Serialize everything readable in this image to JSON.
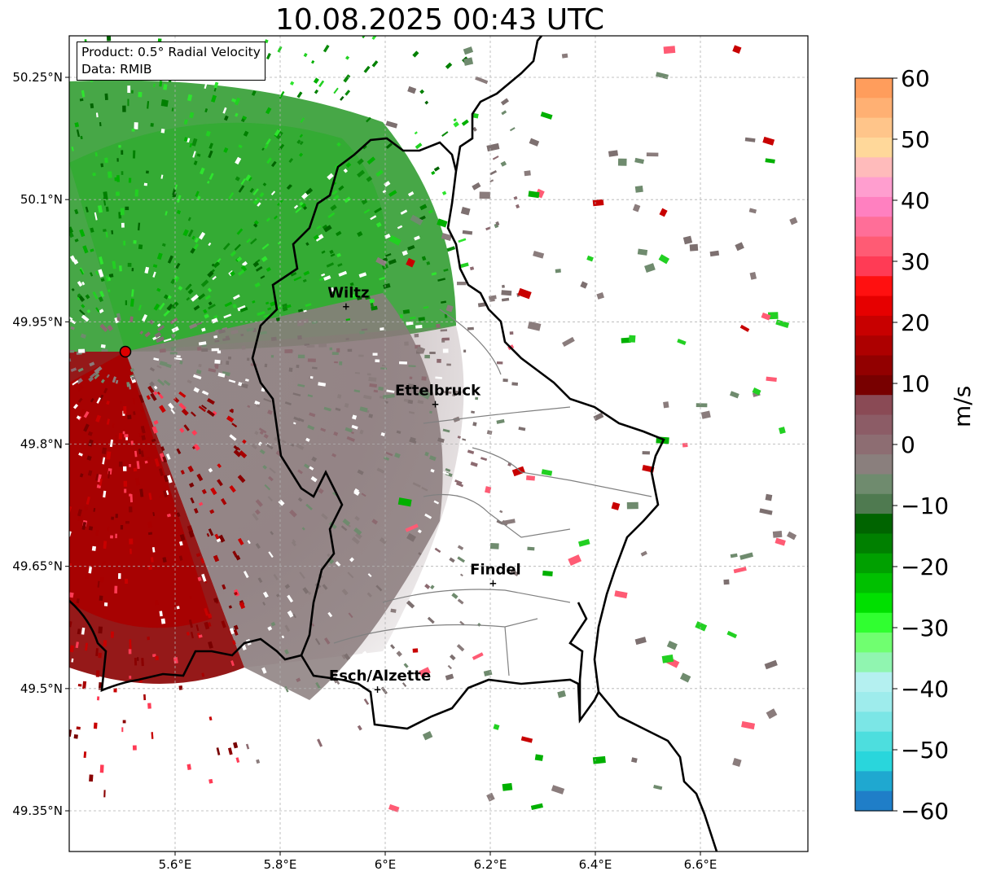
{
  "title": "10.08.2025 00:43 UTC",
  "info": {
    "product": "Product: 0.5° Radial Velocity",
    "data": "Data: RMIB"
  },
  "axes": {
    "lon_ticks": [
      "5.6°E",
      "5.8°E",
      "6°E",
      "6.2°E",
      "6.4°E",
      "6.6°E"
    ],
    "lat_ticks": [
      "50.25°N",
      "50.1°N",
      "49.95°N",
      "49.8°N",
      "49.65°N",
      "49.5°N",
      "49.35°N"
    ],
    "lon_range": [
      5.4,
      6.8
    ],
    "lat_range": [
      49.3,
      50.3
    ],
    "grid": true
  },
  "cities": [
    {
      "name": "Wiltz",
      "lon": 5.93,
      "lat": 49.97
    },
    {
      "name": "Ettelbruck",
      "lon": 6.1,
      "lat": 49.85
    },
    {
      "name": "Findel",
      "lon": 6.21,
      "lat": 49.63
    },
    {
      "name": "Esch/Alzette",
      "lon": 5.99,
      "lat": 49.5
    }
  ],
  "radar_site": {
    "lon": 5.505,
    "lat": 49.915,
    "color": "#dd0000"
  },
  "colorbar": {
    "label": "m/s",
    "ticks": [
      "60",
      "50",
      "40",
      "30",
      "20",
      "10",
      "0",
      "−10",
      "−20",
      "−30",
      "−40",
      "−50",
      "−60"
    ],
    "range": [
      -60,
      60
    ],
    "colors_top_to_bottom": [
      "#ff9d5c",
      "#ffb073",
      "#ffc58a",
      "#ffd89a",
      "#ffbbbb",
      "#ff9ecf",
      "#ff80c0",
      "#ff6e98",
      "#ff5b74",
      "#ff3b55",
      "#ff1010",
      "#e60000",
      "#c80000",
      "#ad0000",
      "#920000",
      "#780000",
      "#8a4a55",
      "#8c5c66",
      "#8d6d72",
      "#8a7f7d",
      "#6f8b6e",
      "#4f7a50",
      "#006400",
      "#008000",
      "#00a000",
      "#00c000",
      "#00e000",
      "#30ff30",
      "#70ff70",
      "#90f5b0",
      "#b4f0f0",
      "#9eecec",
      "#7be6e6",
      "#4ddede",
      "#29d6dc",
      "#1fa8d0",
      "#1f7ec8"
    ]
  },
  "borders_color": "#000000"
}
